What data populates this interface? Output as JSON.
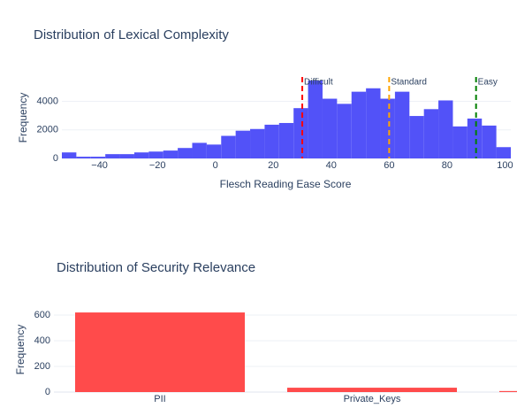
{
  "chart_data": [
    {
      "type": "histogram",
      "title": "Distribution of Lexical Complexity",
      "xlabel": "Flesch Reading Ease Score",
      "ylabel": "Frequency",
      "bins": [
        -53,
        -48,
        -43,
        -38,
        -33,
        -28,
        -23,
        -18,
        -13,
        -8,
        -3,
        2,
        7,
        12,
        17,
        22,
        27,
        32,
        37,
        42,
        47,
        52,
        57,
        62,
        67,
        72,
        77,
        82,
        87,
        92,
        97,
        102
      ],
      "values": [
        420,
        120,
        120,
        300,
        300,
        420,
        480,
        550,
        730,
        1090,
        970,
        1580,
        1940,
        2060,
        2360,
        2480,
        3520,
        5450,
        4180,
        3820,
        4670,
        4910,
        4180,
        4670,
        2970,
        3450,
        4060,
        2240,
        2790,
        2300,
        790
      ],
      "color": "#5252f8",
      "xlim": [
        -53,
        102
      ],
      "xticks": [
        {
          "value": -40,
          "label": "−40"
        },
        {
          "value": -20,
          "label": "−20"
        },
        0,
        20,
        40,
        60,
        80,
        100
      ],
      "ylim": [
        0,
        5700
      ],
      "yticks": [
        0,
        2000,
        4000
      ],
      "grid": true,
      "vlines": [
        {
          "x": 30,
          "label": "Difficult",
          "color": "#ff0000"
        },
        {
          "x": 60,
          "label": "Standard",
          "color": "#ffa500"
        },
        {
          "x": 90,
          "label": "Easy",
          "color": "#008000"
        }
      ]
    },
    {
      "type": "bar",
      "title": "Distribution of Security Relevance",
      "ylabel": "Frequency",
      "categories": [
        "PII",
        "Private_Keys",
        null
      ],
      "values": [
        620,
        34,
        8
      ],
      "color": "#ff4b4b",
      "ylim": [
        0,
        710
      ],
      "yticks": [
        0,
        200,
        400,
        600
      ],
      "grid": true
    }
  ]
}
